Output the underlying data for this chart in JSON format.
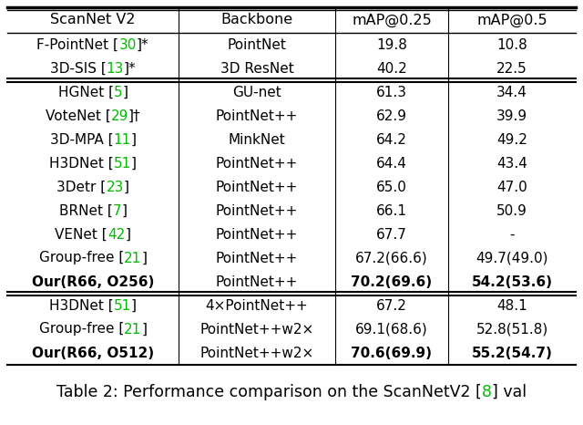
{
  "col_headers": [
    "ScanNet V2",
    "Backbone",
    "mAP@0.25",
    "mAP@0.5"
  ],
  "rows": [
    {
      "group": 1,
      "method_parts": [
        [
          "F-PointNet [",
          "black"
        ],
        [
          "30",
          "green"
        ],
        [
          "]*",
          "black"
        ]
      ],
      "backbone": "PointNet",
      "map25": "19.8",
      "map5": "10.8",
      "bold25": false,
      "bold5": false
    },
    {
      "group": 1,
      "method_parts": [
        [
          "3D-SIS [",
          "black"
        ],
        [
          "13",
          "green"
        ],
        [
          "]*",
          "black"
        ]
      ],
      "backbone": "3D ResNet",
      "map25": "40.2",
      "map5": "22.5",
      "bold25": false,
      "bold5": false
    },
    {
      "group": 2,
      "method_parts": [
        [
          "HGNet [",
          "black"
        ],
        [
          "5",
          "green"
        ],
        [
          "]",
          "black"
        ]
      ],
      "backbone": "GU-net",
      "map25": "61.3",
      "map5": "34.4",
      "bold25": false,
      "bold5": false
    },
    {
      "group": 2,
      "method_parts": [
        [
          "VoteNet [",
          "black"
        ],
        [
          "29",
          "green"
        ],
        [
          "]†",
          "black"
        ]
      ],
      "backbone": "PointNet++",
      "map25": "62.9",
      "map5": "39.9",
      "bold25": false,
      "bold5": false
    },
    {
      "group": 2,
      "method_parts": [
        [
          "3D-MPA [",
          "black"
        ],
        [
          "11",
          "green"
        ],
        [
          "]",
          "black"
        ]
      ],
      "backbone": "MinkNet",
      "map25": "64.2",
      "map5": "49.2",
      "bold25": false,
      "bold5": false
    },
    {
      "group": 2,
      "method_parts": [
        [
          "H3DNet [",
          "black"
        ],
        [
          "51",
          "green"
        ],
        [
          "]",
          "black"
        ]
      ],
      "backbone": "PointNet++",
      "map25": "64.4",
      "map5": "43.4",
      "bold25": false,
      "bold5": false
    },
    {
      "group": 2,
      "method_parts": [
        [
          "3Detr [",
          "black"
        ],
        [
          "23",
          "green"
        ],
        [
          "]",
          "black"
        ]
      ],
      "backbone": "PointNet++",
      "map25": "65.0",
      "map5": "47.0",
      "bold25": false,
      "bold5": false
    },
    {
      "group": 2,
      "method_parts": [
        [
          "BRNet [",
          "black"
        ],
        [
          "7",
          "green"
        ],
        [
          "]",
          "black"
        ]
      ],
      "backbone": "PointNet++",
      "map25": "66.1",
      "map5": "50.9",
      "bold25": false,
      "bold5": false
    },
    {
      "group": 2,
      "method_parts": [
        [
          "VENet [",
          "black"
        ],
        [
          "42",
          "green"
        ],
        [
          "]",
          "black"
        ]
      ],
      "backbone": "PointNet++",
      "map25": "67.7",
      "map5": "-",
      "bold25": false,
      "bold5": false
    },
    {
      "group": 2,
      "method_parts": [
        [
          "Group-free [",
          "black"
        ],
        [
          "21",
          "green"
        ],
        [
          "]",
          "black"
        ]
      ],
      "backbone": "PointNet++",
      "map25": "67.2(66.6)",
      "map5": "49.7(49.0)",
      "bold25": false,
      "bold5": false
    },
    {
      "group": 2,
      "method_parts": [
        [
          "Our(R66, O256)",
          "black"
        ]
      ],
      "backbone": "PointNet++",
      "map25": "70.2(69.6)",
      "map5": "54.2(53.6)",
      "bold25": true,
      "bold5": true
    },
    {
      "group": 3,
      "method_parts": [
        [
          "H3DNet [",
          "black"
        ],
        [
          "51",
          "green"
        ],
        [
          "]",
          "black"
        ]
      ],
      "backbone": "4×PointNet++",
      "map25": "67.2",
      "map5": "48.1",
      "bold25": false,
      "bold5": false
    },
    {
      "group": 3,
      "method_parts": [
        [
          "Group-free [",
          "black"
        ],
        [
          "21",
          "green"
        ],
        [
          "]",
          "black"
        ]
      ],
      "backbone": "PointNet++w2×",
      "map25": "69.1(68.6)",
      "map5": "52.8(51.8)",
      "bold25": false,
      "bold5": false
    },
    {
      "group": 3,
      "method_parts": [
        [
          "Our(R66, O512)",
          "black"
        ]
      ],
      "backbone": "PointNet++w2×",
      "map25": "70.6(69.9)",
      "map5": "55.2(54.7)",
      "bold25": true,
      "bold5": true
    }
  ],
  "caption_parts": [
    [
      "Table 2: Performance comparison on the ScanNetV2 [",
      "black"
    ],
    [
      "8",
      "green"
    ],
    [
      "] val",
      "black"
    ]
  ],
  "green_color": "#00BB00",
  "font_size": 11.0,
  "header_font_size": 11.5,
  "caption_font_size": 12.5
}
